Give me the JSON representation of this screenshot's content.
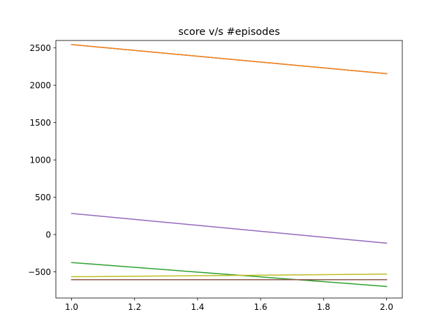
{
  "chart_data": {
    "type": "line",
    "title": "score v/s #episodes",
    "xlabel": "",
    "ylabel": "",
    "xlim": [
      0.95,
      2.05
    ],
    "ylim": [
      -850,
      2600
    ],
    "xticks": [
      1.0,
      1.2,
      1.4,
      1.6,
      1.8,
      2.0
    ],
    "xtick_labels": [
      "1.0",
      "1.2",
      "1.4",
      "1.6",
      "1.8",
      "2.0"
    ],
    "yticks": [
      -500,
      0,
      500,
      1000,
      1500,
      2000,
      2500
    ],
    "ytick_labels": [
      "−500",
      "0",
      "500",
      "1000",
      "1500",
      "2000",
      "2500"
    ],
    "grid": false,
    "legend": "none",
    "series": [
      {
        "color": "#1f77b4",
        "x": [
          1,
          2
        ],
        "y": [
          2545,
          2155
        ]
      },
      {
        "color": "#ff7f0e",
        "x": [
          1,
          2
        ],
        "y": [
          2545,
          2155
        ]
      },
      {
        "color": "#2ca02c",
        "x": [
          1,
          2
        ],
        "y": [
          -375,
          -695
        ]
      },
      {
        "color": "#d62728",
        "x": [
          1,
          2
        ],
        "y": [
          -605,
          -605
        ]
      },
      {
        "color": "#9467bd",
        "x": [
          1,
          2
        ],
        "y": [
          283,
          -115
        ]
      },
      {
        "color": "#8c564b",
        "x": [
          1,
          2
        ],
        "y": [
          -605,
          -605
        ]
      },
      {
        "color": "#bcbd22",
        "x": [
          1,
          2
        ],
        "y": [
          -565,
          -530
        ]
      }
    ]
  }
}
